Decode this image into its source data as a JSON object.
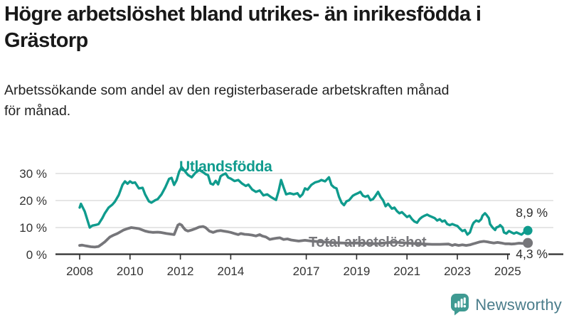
{
  "header": {
    "title_lines": [
      "Högre arbetslöshet bland utrikes- än inrikesfödda i",
      "Grästorp"
    ],
    "subtitle_lines": [
      "Arbetssökande som andel av den registerbaserade arbetskraften månad",
      "för månad."
    ]
  },
  "footer": {
    "brand": "Newsworthy",
    "brand_icon": "newsworthy-speech-bubble-chart-icon",
    "brand_text_color": "#4b7d8b",
    "brand_icon_color": "#3f9a92"
  },
  "chart_data": {
    "type": "line",
    "unit": "%",
    "xlabel": "",
    "ylabel": "",
    "ylim": [
      0,
      34
    ],
    "xlim": [
      2008,
      2026.2
    ],
    "grid": "horizontal",
    "legend_position": "inline-labels",
    "y_ticks": [
      {
        "value": 0,
        "label": "0 %"
      },
      {
        "value": 10,
        "label": "10 %"
      },
      {
        "value": 20,
        "label": "20 %"
      },
      {
        "value": 30,
        "label": "30 %"
      }
    ],
    "x_ticks": [
      {
        "value": 2008,
        "label": "2008"
      },
      {
        "value": 2010,
        "label": "2010"
      },
      {
        "value": 2012,
        "label": "2012"
      },
      {
        "value": 2014,
        "label": "2014"
      },
      {
        "value": 2017,
        "label": "2017"
      },
      {
        "value": 2019,
        "label": "2019"
      },
      {
        "value": 2021,
        "label": "2021"
      },
      {
        "value": 2023,
        "label": "2023"
      },
      {
        "value": 2025,
        "label": "2025"
      }
    ],
    "series": [
      {
        "name": "Utlandsfödda",
        "color": "#0f9b8d",
        "end_value": 8.9,
        "end_label": "8,9 %",
        "points": [
          [
            2008.0,
            17.4
          ],
          [
            2008.05,
            18.8
          ],
          [
            2008.2,
            16.0
          ],
          [
            2008.4,
            10.0
          ],
          [
            2008.5,
            10.7
          ],
          [
            2008.65,
            11.0
          ],
          [
            2008.75,
            11.3
          ],
          [
            2008.9,
            13.5
          ],
          [
            2009.0,
            15.3
          ],
          [
            2009.15,
            17.4
          ],
          [
            2009.3,
            18.5
          ],
          [
            2009.4,
            19.6
          ],
          [
            2009.55,
            22.0
          ],
          [
            2009.7,
            25.8
          ],
          [
            2009.8,
            27.1
          ],
          [
            2009.9,
            26.2
          ],
          [
            2010.0,
            27.1
          ],
          [
            2010.1,
            26.5
          ],
          [
            2010.2,
            26.7
          ],
          [
            2010.35,
            24.5
          ],
          [
            2010.5,
            24.7
          ],
          [
            2010.6,
            22.3
          ],
          [
            2010.75,
            19.7
          ],
          [
            2010.85,
            19.2
          ],
          [
            2011.0,
            20.1
          ],
          [
            2011.1,
            20.5
          ],
          [
            2011.25,
            22.3
          ],
          [
            2011.4,
            24.9
          ],
          [
            2011.55,
            28.0
          ],
          [
            2011.65,
            28.4
          ],
          [
            2011.75,
            25.8
          ],
          [
            2011.85,
            27.5
          ],
          [
            2011.95,
            30.6
          ],
          [
            2012.05,
            32.4
          ],
          [
            2012.15,
            31.2
          ],
          [
            2012.3,
            29.5
          ],
          [
            2012.45,
            28.6
          ],
          [
            2012.6,
            30.3
          ],
          [
            2012.75,
            31.3
          ],
          [
            2012.9,
            30.5
          ],
          [
            2013.0,
            29.8
          ],
          [
            2013.1,
            29.4
          ],
          [
            2013.2,
            26.3
          ],
          [
            2013.3,
            25.9
          ],
          [
            2013.4,
            27.3
          ],
          [
            2013.5,
            26.0
          ],
          [
            2013.6,
            29.0
          ],
          [
            2013.7,
            29.6
          ],
          [
            2013.8,
            30.0
          ],
          [
            2013.9,
            28.5
          ],
          [
            2014.0,
            28.1
          ],
          [
            2014.15,
            27.2
          ],
          [
            2014.3,
            27.6
          ],
          [
            2014.45,
            26.3
          ],
          [
            2014.6,
            25.4
          ],
          [
            2014.7,
            25.9
          ],
          [
            2014.85,
            24.1
          ],
          [
            2015.0,
            23.2
          ],
          [
            2015.15,
            23.7
          ],
          [
            2015.3,
            21.9
          ],
          [
            2015.45,
            22.3
          ],
          [
            2015.6,
            21.3
          ],
          [
            2015.8,
            20.2
          ],
          [
            2015.9,
            23.5
          ],
          [
            2016.0,
            27.6
          ],
          [
            2016.1,
            24.9
          ],
          [
            2016.2,
            22.3
          ],
          [
            2016.35,
            22.7
          ],
          [
            2016.5,
            22.3
          ],
          [
            2016.65,
            22.7
          ],
          [
            2016.75,
            21.4
          ],
          [
            2016.85,
            22.3
          ],
          [
            2016.95,
            24.5
          ],
          [
            2017.05,
            24.0
          ],
          [
            2017.2,
            25.8
          ],
          [
            2017.35,
            26.7
          ],
          [
            2017.5,
            27.1
          ],
          [
            2017.6,
            27.6
          ],
          [
            2017.75,
            27.1
          ],
          [
            2017.9,
            28.6
          ],
          [
            2018.0,
            25.8
          ],
          [
            2018.1,
            24.9
          ],
          [
            2018.2,
            24.5
          ],
          [
            2018.3,
            21.4
          ],
          [
            2018.4,
            19.2
          ],
          [
            2018.5,
            18.3
          ],
          [
            2018.6,
            19.7
          ],
          [
            2018.7,
            20.1
          ],
          [
            2018.85,
            21.8
          ],
          [
            2018.95,
            22.3
          ],
          [
            2019.05,
            22.7
          ],
          [
            2019.15,
            23.2
          ],
          [
            2019.25,
            21.8
          ],
          [
            2019.35,
            21.4
          ],
          [
            2019.45,
            21.8
          ],
          [
            2019.55,
            20.1
          ],
          [
            2019.65,
            20.5
          ],
          [
            2019.75,
            21.8
          ],
          [
            2019.85,
            23.2
          ],
          [
            2019.95,
            21.4
          ],
          [
            2020.05,
            20.1
          ],
          [
            2020.15,
            17.9
          ],
          [
            2020.25,
            18.8
          ],
          [
            2020.4,
            17.0
          ],
          [
            2020.5,
            17.4
          ],
          [
            2020.6,
            16.1
          ],
          [
            2020.7,
            15.3
          ],
          [
            2020.8,
            15.7
          ],
          [
            2020.9,
            14.8
          ],
          [
            2021.0,
            13.9
          ],
          [
            2021.1,
            14.4
          ],
          [
            2021.2,
            13.1
          ],
          [
            2021.3,
            12.2
          ],
          [
            2021.4,
            11.8
          ],
          [
            2021.5,
            13.1
          ],
          [
            2021.6,
            13.9
          ],
          [
            2021.7,
            14.4
          ],
          [
            2021.8,
            14.8
          ],
          [
            2021.9,
            14.3
          ],
          [
            2022.0,
            13.9
          ],
          [
            2022.1,
            13.5
          ],
          [
            2022.2,
            12.6
          ],
          [
            2022.3,
            13.1
          ],
          [
            2022.4,
            12.2
          ],
          [
            2022.5,
            12.6
          ],
          [
            2022.6,
            11.3
          ],
          [
            2022.7,
            10.9
          ],
          [
            2022.8,
            11.3
          ],
          [
            2022.9,
            10.9
          ],
          [
            2023.0,
            10.6
          ],
          [
            2023.1,
            9.6
          ],
          [
            2023.2,
            8.7
          ],
          [
            2023.3,
            9.1
          ],
          [
            2023.4,
            7.4
          ],
          [
            2023.5,
            8.2
          ],
          [
            2023.6,
            10.9
          ],
          [
            2023.65,
            11.8
          ],
          [
            2023.75,
            12.6
          ],
          [
            2023.85,
            12.2
          ],
          [
            2023.95,
            13.1
          ],
          [
            2024.0,
            14.4
          ],
          [
            2024.1,
            15.3
          ],
          [
            2024.15,
            14.8
          ],
          [
            2024.25,
            13.5
          ],
          [
            2024.3,
            11.3
          ],
          [
            2024.4,
            10.0
          ],
          [
            2024.5,
            9.1
          ],
          [
            2024.55,
            10.0
          ],
          [
            2024.65,
            10.4
          ],
          [
            2024.7,
            10.9
          ],
          [
            2024.8,
            10.0
          ],
          [
            2024.85,
            8.2
          ],
          [
            2024.95,
            7.8
          ],
          [
            2025.05,
            8.7
          ],
          [
            2025.15,
            8.2
          ],
          [
            2025.25,
            7.8
          ],
          [
            2025.35,
            8.2
          ],
          [
            2025.45,
            7.8
          ],
          [
            2025.55,
            7.4
          ],
          [
            2025.65,
            8.2
          ],
          [
            2025.72,
            8.7
          ],
          [
            2025.8,
            8.9
          ]
        ]
      },
      {
        "name": "Total arbetslöshet",
        "color": "#76767a",
        "end_value": 4.3,
        "end_label": "4,3 %",
        "points": [
          [
            2008.0,
            3.4
          ],
          [
            2008.1,
            3.5
          ],
          [
            2008.25,
            3.2
          ],
          [
            2008.45,
            2.9
          ],
          [
            2008.6,
            2.8
          ],
          [
            2008.75,
            3.0
          ],
          [
            2008.9,
            4.0
          ],
          [
            2009.0,
            4.7
          ],
          [
            2009.2,
            6.5
          ],
          [
            2009.35,
            7.2
          ],
          [
            2009.5,
            7.8
          ],
          [
            2009.75,
            9.1
          ],
          [
            2009.9,
            9.6
          ],
          [
            2010.05,
            10.0
          ],
          [
            2010.2,
            9.8
          ],
          [
            2010.35,
            9.6
          ],
          [
            2010.6,
            8.7
          ],
          [
            2010.75,
            8.4
          ],
          [
            2010.9,
            8.2
          ],
          [
            2011.1,
            8.3
          ],
          [
            2011.2,
            8.2
          ],
          [
            2011.45,
            7.8
          ],
          [
            2011.6,
            7.6
          ],
          [
            2011.75,
            7.4
          ],
          [
            2011.9,
            10.9
          ],
          [
            2011.97,
            11.3
          ],
          [
            2012.05,
            10.9
          ],
          [
            2012.12,
            10.0
          ],
          [
            2012.2,
            9.1
          ],
          [
            2012.3,
            8.7
          ],
          [
            2012.45,
            9.1
          ],
          [
            2012.6,
            9.6
          ],
          [
            2012.75,
            10.2
          ],
          [
            2012.9,
            10.4
          ],
          [
            2013.0,
            10.0
          ],
          [
            2013.15,
            8.7
          ],
          [
            2013.3,
            8.2
          ],
          [
            2013.45,
            8.7
          ],
          [
            2013.6,
            8.9
          ],
          [
            2013.7,
            8.7
          ],
          [
            2013.85,
            8.5
          ],
          [
            2014.0,
            8.2
          ],
          [
            2014.15,
            7.8
          ],
          [
            2014.3,
            7.4
          ],
          [
            2014.4,
            7.8
          ],
          [
            2014.55,
            7.5
          ],
          [
            2014.7,
            7.4
          ],
          [
            2014.85,
            7.2
          ],
          [
            2015.0,
            6.9
          ],
          [
            2015.15,
            7.4
          ],
          [
            2015.25,
            6.9
          ],
          [
            2015.4,
            6.5
          ],
          [
            2015.55,
            5.6
          ],
          [
            2015.7,
            5.9
          ],
          [
            2015.85,
            6.1
          ],
          [
            2015.95,
            6.2
          ],
          [
            2016.1,
            5.6
          ],
          [
            2016.25,
            5.8
          ],
          [
            2016.4,
            5.4
          ],
          [
            2016.55,
            5.2
          ],
          [
            2016.7,
            5.0
          ],
          [
            2016.95,
            5.3
          ],
          [
            2017.2,
            5.0
          ],
          [
            2017.5,
            4.8
          ],
          [
            2017.8,
            4.6
          ],
          [
            2018.1,
            4.4
          ],
          [
            2018.4,
            4.3
          ],
          [
            2018.7,
            4.2
          ],
          [
            2019.0,
            4.3
          ],
          [
            2019.3,
            4.2
          ],
          [
            2019.6,
            4.0
          ],
          [
            2019.9,
            4.1
          ],
          [
            2020.2,
            4.4
          ],
          [
            2020.5,
            4.6
          ],
          [
            2020.8,
            4.4
          ],
          [
            2021.1,
            4.2
          ],
          [
            2021.4,
            4.0
          ],
          [
            2021.7,
            3.9
          ],
          [
            2022.0,
            3.8
          ],
          [
            2022.3,
            3.8
          ],
          [
            2022.65,
            3.9
          ],
          [
            2022.8,
            3.4
          ],
          [
            2022.9,
            3.7
          ],
          [
            2023.05,
            3.4
          ],
          [
            2023.2,
            3.6
          ],
          [
            2023.35,
            3.4
          ],
          [
            2023.5,
            3.6
          ],
          [
            2023.6,
            3.9
          ],
          [
            2023.75,
            4.3
          ],
          [
            2023.9,
            4.7
          ],
          [
            2024.05,
            4.9
          ],
          [
            2024.2,
            4.7
          ],
          [
            2024.3,
            4.5
          ],
          [
            2024.45,
            4.3
          ],
          [
            2024.6,
            4.5
          ],
          [
            2024.75,
            4.3
          ],
          [
            2024.9,
            4.0
          ],
          [
            2025.05,
            4.0
          ],
          [
            2025.15,
            3.9
          ],
          [
            2025.3,
            4.0
          ],
          [
            2025.45,
            4.2
          ],
          [
            2025.6,
            4.1
          ],
          [
            2025.8,
            4.3
          ]
        ]
      }
    ]
  }
}
